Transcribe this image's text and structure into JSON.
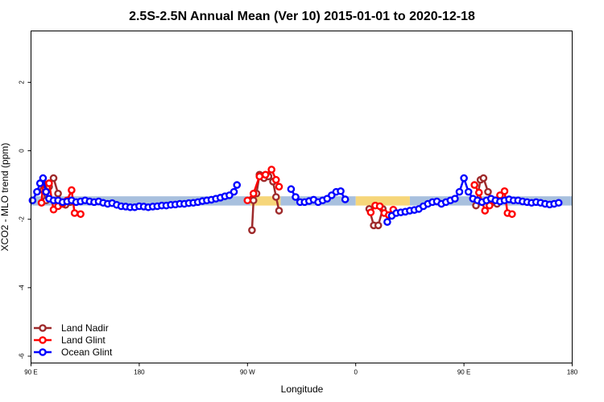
{
  "chart_data": {
    "type": "line",
    "title": "2.5S-2.5N Annual Mean (Ver 10)   2015-01-01 to 2020-12-18",
    "xlabel": "Longitude",
    "ylabel": "XCO2 - MLO trend (ppm)",
    "xlim": [
      -90,
      270
    ],
    "ylim": [
      -6.2,
      3.5
    ],
    "x_ticks": [
      {
        "value": -90,
        "label": "90 E"
      },
      {
        "value": -18,
        "label": "180"
      },
      {
        "value": 54,
        "label": "90 W"
      },
      {
        "value": 126,
        "label": "0"
      },
      {
        "value": 198,
        "label": "90 E"
      },
      {
        "value": 270,
        "label": "180"
      }
    ],
    "y_ticks": [
      {
        "value": 2,
        "label": "2"
      },
      {
        "value": 0,
        "label": "0"
      },
      {
        "value": -2,
        "label": "-2"
      },
      {
        "value": -4,
        "label": "-4"
      },
      {
        "value": -6,
        "label": "-6"
      }
    ],
    "bands": [
      {
        "color": "#a8c0de",
        "y0": -1.6,
        "y1": -1.33,
        "segments": [
          [
            -90,
            56
          ],
          [
            76,
            126
          ],
          [
            162,
            270
          ]
        ]
      },
      {
        "color": "#f6d67a",
        "y0": -1.6,
        "y1": -1.33,
        "segments": [
          [
            56,
            76
          ],
          [
            126,
            162
          ]
        ]
      }
    ],
    "series": [
      {
        "name": "Land Nadir",
        "color": "#9e2a2b",
        "segments": [
          [
            [
              -82,
              -1.15
            ],
            [
              -80,
              -1.45
            ],
            [
              -78,
              -1.05
            ],
            [
              -75,
              -0.8
            ],
            [
              -72,
              -1.25
            ],
            [
              -70,
              -1.5
            ],
            [
              -67,
              -1.58
            ],
            [
              -64,
              -1.5
            ]
          ],
          [
            [
              57,
              -2.32
            ],
            [
              58,
              -1.45
            ],
            [
              60,
              -1.25
            ],
            [
              62,
              -0.7
            ],
            [
              65,
              -0.8
            ],
            [
              68,
              -0.75
            ],
            [
              71,
              -0.9
            ],
            [
              73,
              -1.35
            ],
            [
              75,
              -1.75
            ]
          ],
          [
            [
              135,
              -1.7
            ],
            [
              138,
              -2.18
            ],
            [
              141,
              -2.18
            ],
            [
              144,
              -1.7
            ]
          ],
          [
            [
              206,
              -1.6
            ],
            [
              209,
              -0.85
            ],
            [
              211,
              -0.8
            ],
            [
              214,
              -1.2
            ],
            [
              217,
              -1.5
            ],
            [
              220,
              -1.55
            ]
          ]
        ]
      },
      {
        "name": "Land Glint",
        "color": "#ff0000",
        "segments": [
          [
            [
              -83,
              -1.52
            ],
            [
              -82,
              -0.95
            ],
            [
              -78,
              -0.95
            ],
            [
              -75,
              -1.72
            ],
            [
              -72,
              -1.62
            ],
            [
              -69,
              -1.55
            ],
            [
              -66,
              -1.45
            ],
            [
              -63,
              -1.15
            ],
            [
              -61,
              -1.82
            ],
            [
              -57,
              -1.85
            ]
          ],
          [
            [
              54,
              -1.45
            ],
            [
              58,
              -1.25
            ],
            [
              62,
              -0.75
            ],
            [
              66,
              -0.7
            ],
            [
              70,
              -0.55
            ],
            [
              73,
              -0.85
            ],
            [
              75,
              -1.05
            ]
          ],
          [
            [
              136,
              -1.8
            ],
            [
              139,
              -1.6
            ],
            [
              142,
              -1.62
            ],
            [
              145,
              -1.82
            ],
            [
              148,
              -1.88
            ],
            [
              151,
              -1.72
            ]
          ],
          [
            [
              205,
              -1.0
            ],
            [
              208,
              -1.22
            ],
            [
              212,
              -1.75
            ],
            [
              215,
              -1.6
            ],
            [
              218,
              -1.45
            ],
            [
              222,
              -1.3
            ],
            [
              225,
              -1.18
            ],
            [
              227,
              -1.82
            ],
            [
              230,
              -1.85
            ]
          ]
        ]
      },
      {
        "name": "Ocean Glint",
        "color": "#0000ff",
        "segments": [
          [
            [
              -89,
              -1.45
            ],
            [
              -86,
              -1.2
            ],
            [
              -84,
              -0.95
            ],
            [
              -82,
              -0.8
            ],
            [
              -80,
              -1.2
            ],
            [
              -78,
              -1.4
            ],
            [
              -75,
              -1.45
            ],
            [
              -72,
              -1.45
            ],
            [
              -69,
              -1.5
            ],
            [
              -66,
              -1.48
            ],
            [
              -63,
              -1.45
            ],
            [
              -60,
              -1.5
            ],
            [
              -57,
              -1.48
            ],
            [
              -54,
              -1.45
            ],
            [
              -51,
              -1.48
            ],
            [
              -48,
              -1.5
            ],
            [
              -45,
              -1.48
            ],
            [
              -42,
              -1.52
            ],
            [
              -39,
              -1.55
            ],
            [
              -36,
              -1.53
            ],
            [
              -33,
              -1.58
            ],
            [
              -30,
              -1.62
            ],
            [
              -27,
              -1.63
            ],
            [
              -24,
              -1.65
            ],
            [
              -21,
              -1.65
            ],
            [
              -18,
              -1.62
            ],
            [
              -15,
              -1.63
            ],
            [
              -12,
              -1.65
            ],
            [
              -9,
              -1.63
            ],
            [
              -6,
              -1.62
            ],
            [
              -3,
              -1.6
            ],
            [
              0,
              -1.6
            ],
            [
              3,
              -1.58
            ],
            [
              6,
              -1.57
            ],
            [
              9,
              -1.55
            ],
            [
              12,
              -1.55
            ],
            [
              15,
              -1.53
            ],
            [
              18,
              -1.52
            ],
            [
              21,
              -1.5
            ],
            [
              24,
              -1.47
            ],
            [
              27,
              -1.45
            ],
            [
              30,
              -1.43
            ],
            [
              33,
              -1.4
            ],
            [
              36,
              -1.37
            ],
            [
              39,
              -1.33
            ],
            [
              42,
              -1.3
            ],
            [
              45,
              -1.2
            ],
            [
              47,
              -1.0
            ]
          ],
          [
            [
              83,
              -1.12
            ],
            [
              86,
              -1.35
            ],
            [
              89,
              -1.5
            ],
            [
              92,
              -1.5
            ],
            [
              95,
              -1.47
            ],
            [
              98,
              -1.43
            ],
            [
              101,
              -1.5
            ],
            [
              104,
              -1.45
            ],
            [
              107,
              -1.4
            ],
            [
              110,
              -1.3
            ],
            [
              113,
              -1.2
            ],
            [
              116,
              -1.18
            ],
            [
              119,
              -1.42
            ]
          ],
          [
            [
              147,
              -2.08
            ],
            [
              150,
              -1.9
            ],
            [
              153,
              -1.82
            ],
            [
              156,
              -1.8
            ],
            [
              159,
              -1.78
            ],
            [
              162,
              -1.75
            ],
            [
              165,
              -1.73
            ],
            [
              168,
              -1.7
            ],
            [
              171,
              -1.62
            ],
            [
              174,
              -1.55
            ],
            [
              177,
              -1.5
            ],
            [
              180,
              -1.48
            ],
            [
              183,
              -1.55
            ],
            [
              186,
              -1.5
            ],
            [
              189,
              -1.45
            ],
            [
              192,
              -1.4
            ],
            [
              195,
              -1.2
            ],
            [
              198,
              -0.8
            ],
            [
              201,
              -1.2
            ],
            [
              204,
              -1.4
            ],
            [
              207,
              -1.45
            ],
            [
              210,
              -1.5
            ],
            [
              213,
              -1.45
            ],
            [
              216,
              -1.4
            ],
            [
              219,
              -1.45
            ],
            [
              222,
              -1.48
            ],
            [
              225,
              -1.45
            ],
            [
              228,
              -1.42
            ],
            [
              231,
              -1.45
            ],
            [
              234,
              -1.45
            ],
            [
              237,
              -1.48
            ],
            [
              240,
              -1.5
            ],
            [
              243,
              -1.52
            ],
            [
              246,
              -1.5
            ],
            [
              249,
              -1.52
            ],
            [
              252,
              -1.55
            ],
            [
              255,
              -1.57
            ],
            [
              258,
              -1.55
            ],
            [
              261,
              -1.52
            ]
          ]
        ]
      }
    ],
    "legend": {
      "position": "bottom-left"
    }
  }
}
